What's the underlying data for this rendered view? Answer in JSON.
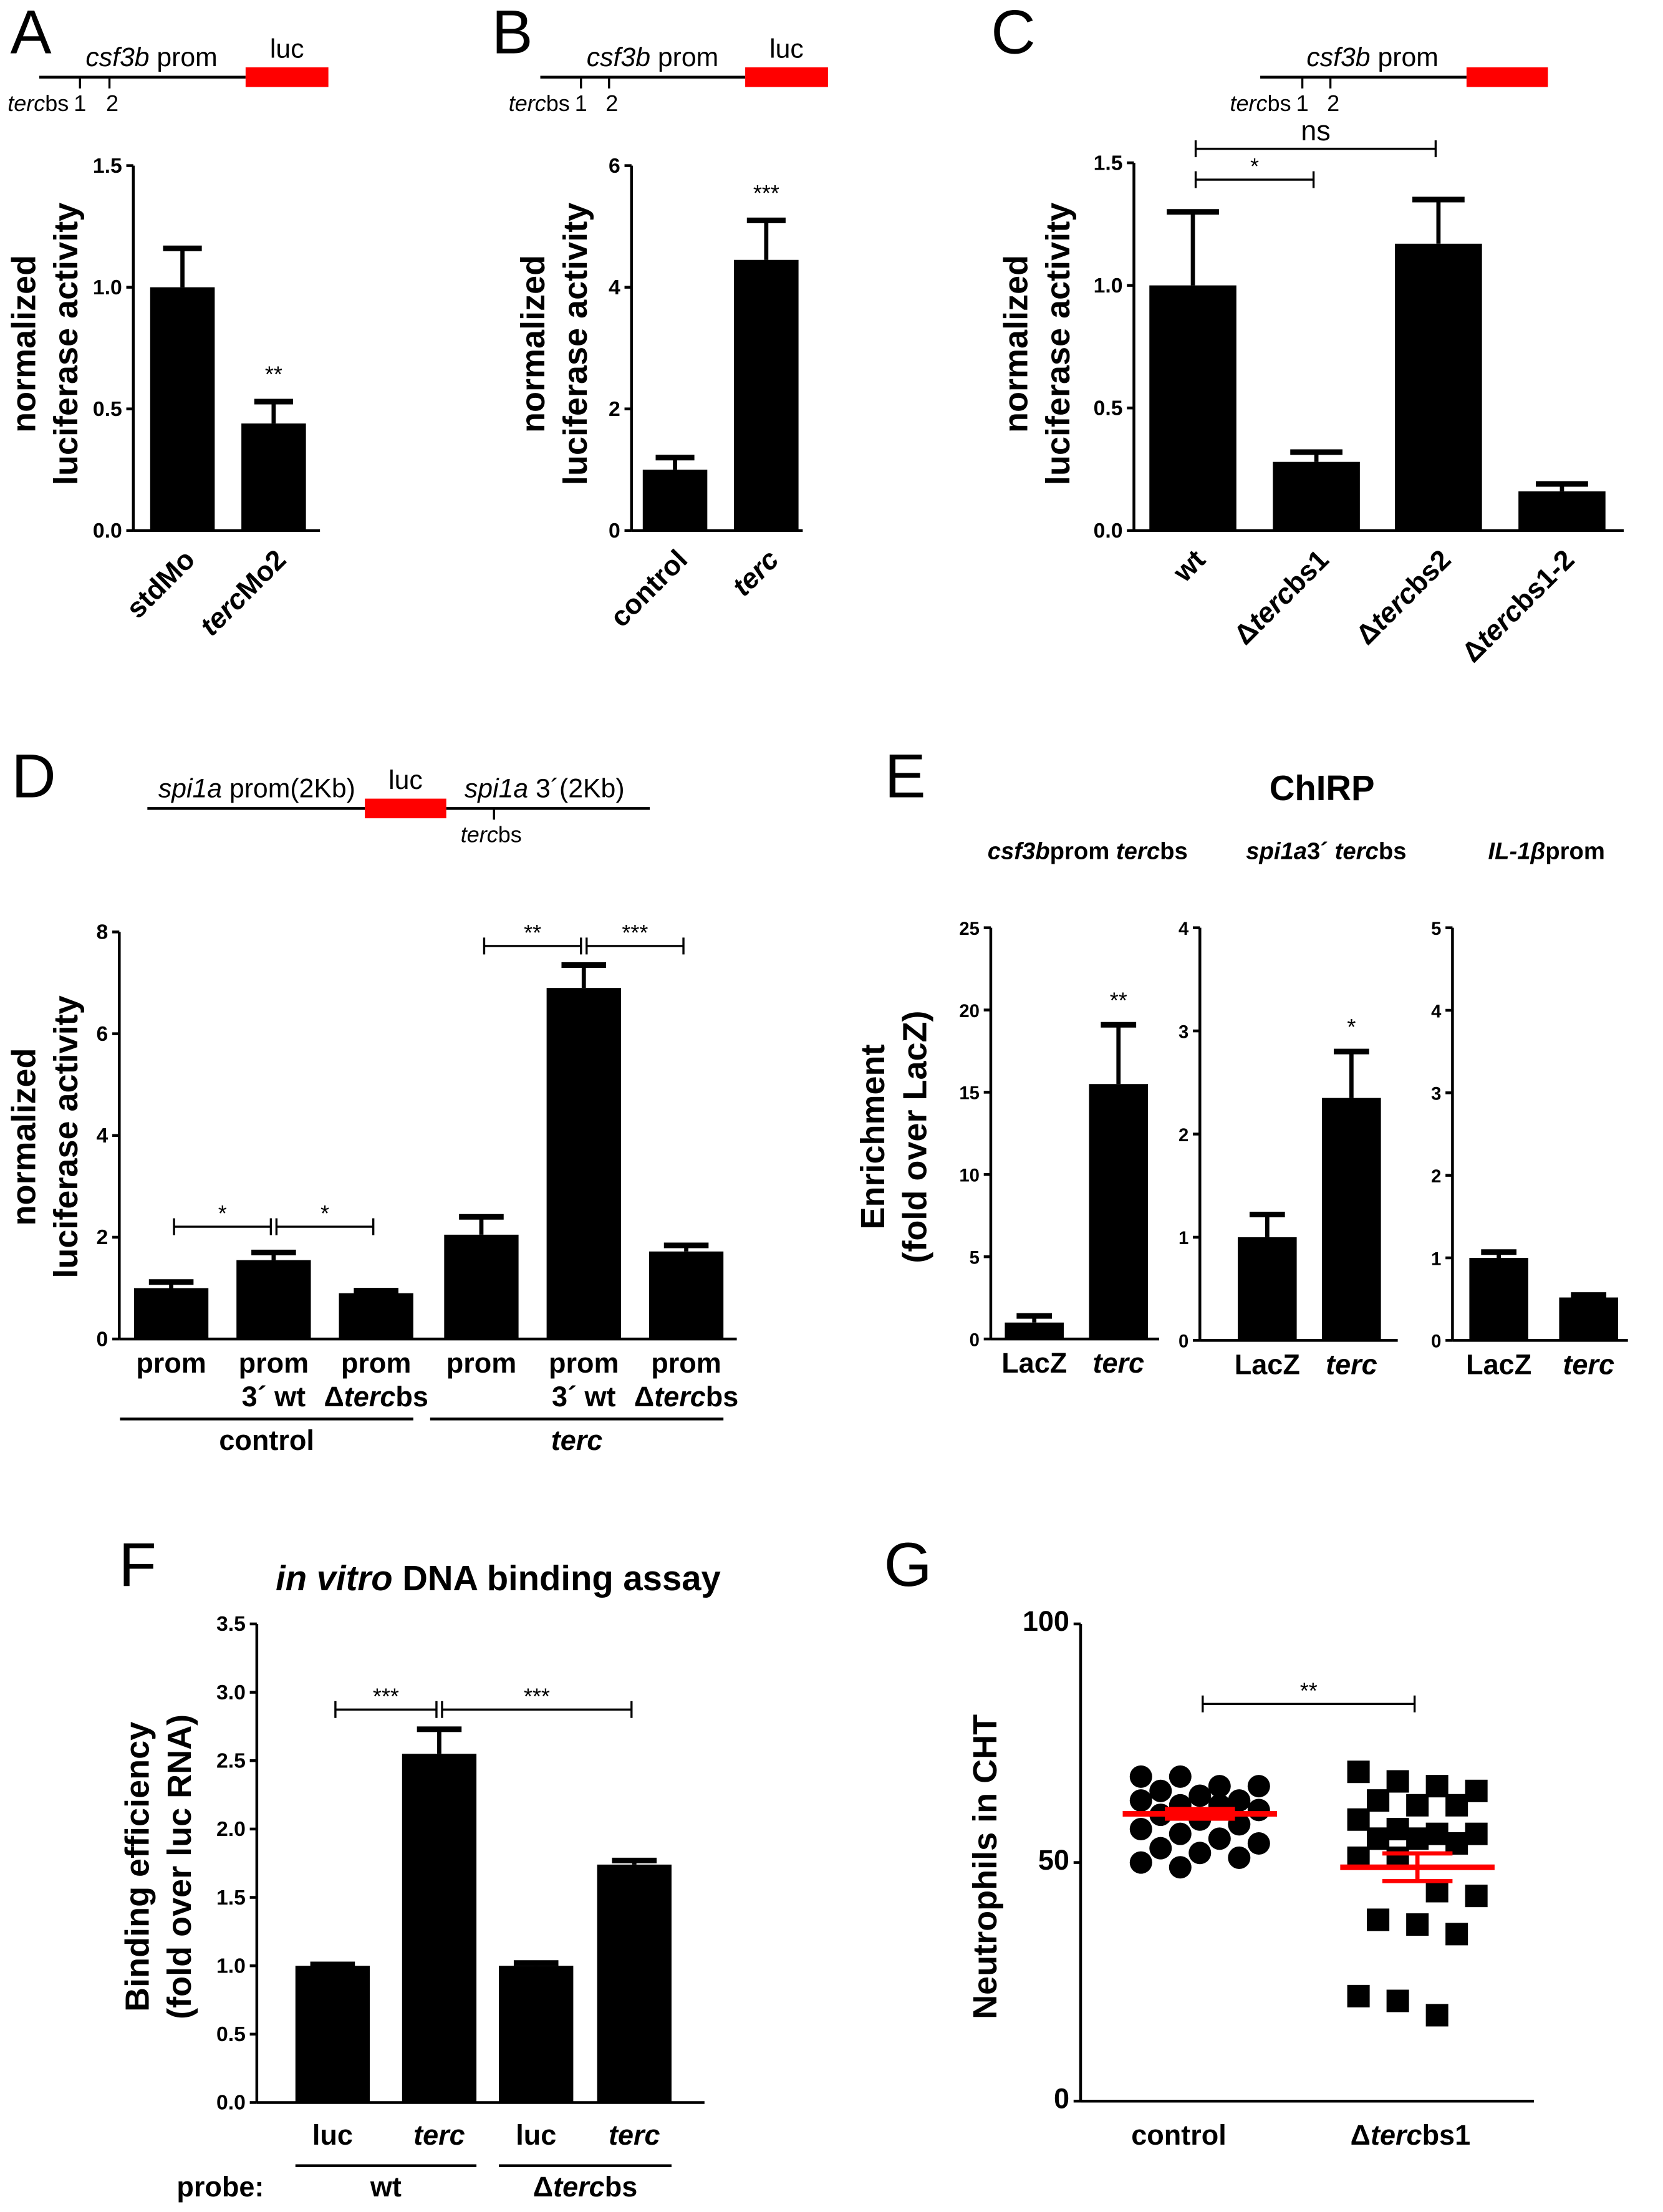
{
  "panel_letters": [
    "A",
    "B",
    "C",
    "D",
    "E",
    "F",
    "G"
  ],
  "diagrams": {
    "A": {
      "promoter": [
        [
          "csf3b",
          1
        ],
        [
          " prom",
          0
        ]
      ],
      "reporter": "luc",
      "site_label": [
        [
          "terc",
          1
        ],
        [
          "bs",
          0
        ]
      ],
      "sites": [
        "1",
        "2"
      ]
    },
    "B": {
      "promoter": [
        [
          "csf3b",
          1
        ],
        [
          " prom",
          0
        ]
      ],
      "reporter": "luc",
      "site_label": [
        [
          "terc",
          1
        ],
        [
          "bs",
          0
        ]
      ],
      "sites": [
        "1",
        "2"
      ]
    },
    "C": {
      "promoter": [
        [
          "csf3b",
          1
        ],
        [
          " prom",
          0
        ]
      ],
      "site_label": [
        [
          "terc",
          1
        ],
        [
          "bs",
          0
        ]
      ],
      "sites": [
        "1",
        "2"
      ]
    },
    "D": {
      "promoter": [
        [
          "spi1a",
          1
        ],
        [
          " prom(2Kb)",
          0
        ]
      ],
      "reporter": "luc",
      "utr": [
        [
          "spi1a",
          1
        ],
        [
          " 3´(2Kb)",
          0
        ]
      ],
      "site_label": [
        [
          "terc",
          1
        ],
        [
          "bs",
          0
        ]
      ]
    }
  },
  "colors": {
    "bar": "#000000",
    "reporter": "#ff0000",
    "mean_line": "#ff0000"
  },
  "chart_data": [
    {
      "panel": "A",
      "type": "bar",
      "ylabel": [
        "normalized",
        "luciferase activity"
      ],
      "ylim": [
        0,
        1.5
      ],
      "yticks": [
        "0.0",
        "0.5",
        "1.0",
        "1.5"
      ],
      "categories": [
        [
          [
            "stdMo",
            0
          ]
        ],
        [
          [
            "terc",
            1
          ],
          [
            "Mo2",
            0
          ]
        ]
      ],
      "values": [
        1.0,
        0.44
      ],
      "errors": [
        0.16,
        0.09
      ],
      "significance": [
        {
          "bar": 1,
          "label": "**"
        }
      ],
      "brackets": []
    },
    {
      "panel": "B",
      "type": "bar",
      "ylabel": [
        "normalized",
        "luciferase activity"
      ],
      "ylim": [
        0,
        6
      ],
      "yticks": [
        "0",
        "2",
        "4",
        "6"
      ],
      "categories": [
        [
          [
            "control",
            0
          ]
        ],
        [
          [
            "terc",
            1
          ]
        ]
      ],
      "values": [
        1.0,
        4.45
      ],
      "errors": [
        0.2,
        0.65
      ],
      "significance": [
        {
          "bar": 1,
          "label": "***"
        }
      ],
      "brackets": []
    },
    {
      "panel": "C",
      "type": "bar",
      "ylabel": [
        "normalized",
        "luciferase activity"
      ],
      "ylim": [
        0,
        1.5
      ],
      "yticks": [
        "0.0",
        "0.5",
        "1.0",
        "1.5"
      ],
      "categories": [
        [
          [
            "wt",
            0
          ]
        ],
        [
          [
            "Δ",
            0
          ],
          [
            "terc",
            1
          ],
          [
            "bs1",
            0
          ]
        ],
        [
          [
            "Δ",
            0
          ],
          [
            "terc",
            1
          ],
          [
            "bs2",
            0
          ]
        ],
        [
          [
            "Δ",
            0
          ],
          [
            "terc",
            1
          ],
          [
            "bs1-2",
            0
          ]
        ]
      ],
      "values": [
        1.0,
        0.28,
        1.17,
        0.16
      ],
      "errors": [
        0.3,
        0.04,
        0.18,
        0.03
      ],
      "significance": [],
      "brackets": [
        {
          "from": 0,
          "to": 1,
          "label": "*"
        },
        {
          "from": 0,
          "to": 2,
          "label": "ns"
        }
      ]
    },
    {
      "panel": "D",
      "type": "bar",
      "ylabel": [
        "normalized",
        "luciferase activity"
      ],
      "ylim": [
        0,
        8
      ],
      "yticks": [
        "0",
        "2",
        "4",
        "6",
        "8"
      ],
      "categories": [
        [
          [
            "prom",
            0
          ]
        ],
        [
          [
            "prom",
            0
          ]
        ],
        [
          [
            "prom",
            0
          ]
        ],
        [
          [
            "prom",
            0
          ]
        ],
        [
          [
            "prom",
            0
          ]
        ],
        [
          [
            "prom",
            0
          ]
        ]
      ],
      "categories_line2": [
        [],
        [
          [
            "3´ wt",
            0
          ]
        ],
        [
          [
            "Δ",
            0
          ],
          [
            "terc",
            1
          ],
          [
            "bs",
            0
          ]
        ],
        [],
        [
          [
            "3´ wt",
            0
          ]
        ],
        [
          [
            "Δ",
            0
          ],
          [
            "terc",
            1
          ],
          [
            "bs",
            0
          ]
        ]
      ],
      "groups": [
        {
          "label": [
            [
              "control",
              0
            ]
          ],
          "bars": [
            0,
            2
          ]
        },
        {
          "label": [
            [
              "terc",
              1
            ]
          ],
          "bars": [
            3,
            5
          ]
        }
      ],
      "values": [
        1.0,
        1.55,
        0.9,
        2.05,
        6.9,
        1.72
      ],
      "errors": [
        0.12,
        0.15,
        0.05,
        0.35,
        0.45,
        0.12
      ],
      "significance": [],
      "brackets": [
        {
          "from": 0,
          "to": 1,
          "label": "*"
        },
        {
          "from": 1,
          "to": 2,
          "label": "*"
        },
        {
          "from": 3,
          "to": 4,
          "label": "**"
        },
        {
          "from": 4,
          "to": 5,
          "label": "***"
        }
      ]
    },
    {
      "panel": "E",
      "type": "bar",
      "super_title": "ChIRP",
      "ylabel": [
        "Enrichment",
        "(fold over LacZ)"
      ],
      "title": [
        [
          "csf3b",
          1
        ],
        [
          "prom ",
          0
        ],
        [
          "terc",
          1
        ],
        [
          "bs",
          0
        ]
      ],
      "ylim": [
        0,
        25
      ],
      "yticks": [
        "0",
        "5",
        "10",
        "15",
        "20",
        "25"
      ],
      "categories": [
        [
          [
            "LacZ",
            0
          ]
        ],
        [
          [
            "terc",
            1
          ]
        ]
      ],
      "values": [
        1.0,
        15.5
      ],
      "errors": [
        0.4,
        3.6
      ],
      "significance": [
        {
          "bar": 1,
          "label": "**"
        }
      ],
      "brackets": []
    },
    {
      "panel": "E",
      "type": "bar",
      "title": [
        [
          "spi1a",
          1
        ],
        [
          "3´ ",
          0
        ],
        [
          "terc",
          1
        ],
        [
          "bs",
          0
        ]
      ],
      "ylim": [
        0,
        4
      ],
      "yticks": [
        "0",
        "1",
        "2",
        "3",
        "4"
      ],
      "categories": [
        [
          [
            "LacZ",
            0
          ]
        ],
        [
          [
            "terc",
            1
          ]
        ]
      ],
      "values": [
        1.0,
        2.35
      ],
      "errors": [
        0.22,
        0.45
      ],
      "significance": [
        {
          "bar": 1,
          "label": "*"
        }
      ],
      "brackets": []
    },
    {
      "panel": "E",
      "type": "bar",
      "title": [
        [
          "IL-1β",
          1
        ],
        [
          "prom",
          0
        ]
      ],
      "ylim": [
        0,
        5
      ],
      "yticks": [
        "0",
        "1",
        "2",
        "3",
        "4",
        "5"
      ],
      "categories": [
        [
          [
            "LacZ",
            0
          ]
        ],
        [
          [
            "terc",
            1
          ]
        ]
      ],
      "values": [
        1.0,
        0.52
      ],
      "errors": [
        0.07,
        0.03
      ],
      "significance": [],
      "brackets": []
    },
    {
      "panel": "F",
      "type": "bar",
      "title": [
        [
          "in vitro",
          1
        ],
        [
          " DNA binding assay",
          0
        ]
      ],
      "ylabel": [
        "Binding efficiency",
        "(fold over luc RNA)"
      ],
      "ylim": [
        0,
        3.5
      ],
      "yticks": [
        "0.0",
        "0.5",
        "1.0",
        "1.5",
        "2.0",
        "2.5",
        "3.0",
        "3.5"
      ],
      "categories": [
        [
          [
            "luc",
            0
          ]
        ],
        [
          [
            "terc",
            1
          ]
        ],
        [
          [
            "luc",
            0
          ]
        ],
        [
          [
            "terc",
            1
          ]
        ]
      ],
      "values": [
        1.0,
        2.55,
        1.0,
        1.74
      ],
      "errors": [
        0.01,
        0.18,
        0.02,
        0.03
      ],
      "probe_label": "probe:",
      "groups": [
        {
          "label": [
            [
              "wt",
              0
            ]
          ],
          "bars": [
            0,
            1
          ]
        },
        {
          "label": [
            [
              "Δ",
              0
            ],
            [
              "terc",
              1
            ],
            [
              "bs",
              0
            ]
          ],
          "bars": [
            2,
            3
          ]
        }
      ],
      "significance": [],
      "brackets": [
        {
          "from": 0,
          "to": 1,
          "label": "***"
        },
        {
          "from": 1,
          "to": 3,
          "label": "***"
        }
      ]
    },
    {
      "panel": "G",
      "type": "scatter",
      "ylabel": [
        "Neutrophils in CHT"
      ],
      "ylim": [
        0,
        100
      ],
      "yticks": [
        "0",
        "50",
        "100"
      ],
      "categories": [
        [
          [
            "control",
            0
          ]
        ],
        [
          [
            "Δ",
            0
          ],
          [
            "terc",
            1
          ],
          [
            "bs1",
            0
          ]
        ]
      ],
      "series": [
        {
          "marker": "circle",
          "values": [
            68,
            68,
            66,
            66,
            65,
            64,
            63,
            63,
            62,
            62,
            61,
            60,
            59,
            58,
            57,
            56,
            55,
            54,
            53,
            52,
            51,
            50,
            49
          ],
          "mean": 60.2,
          "sem": 1.0
        },
        {
          "marker": "square",
          "values": [
            69,
            67,
            66,
            65,
            63,
            62,
            62,
            59,
            57,
            56,
            56,
            55,
            55,
            54,
            51,
            51,
            44,
            43,
            38,
            37,
            35,
            22,
            21,
            18
          ],
          "mean": 49.0,
          "sem": 2.9
        }
      ],
      "brackets": [
        {
          "from": 0,
          "to": 1,
          "label": "**"
        }
      ]
    }
  ]
}
